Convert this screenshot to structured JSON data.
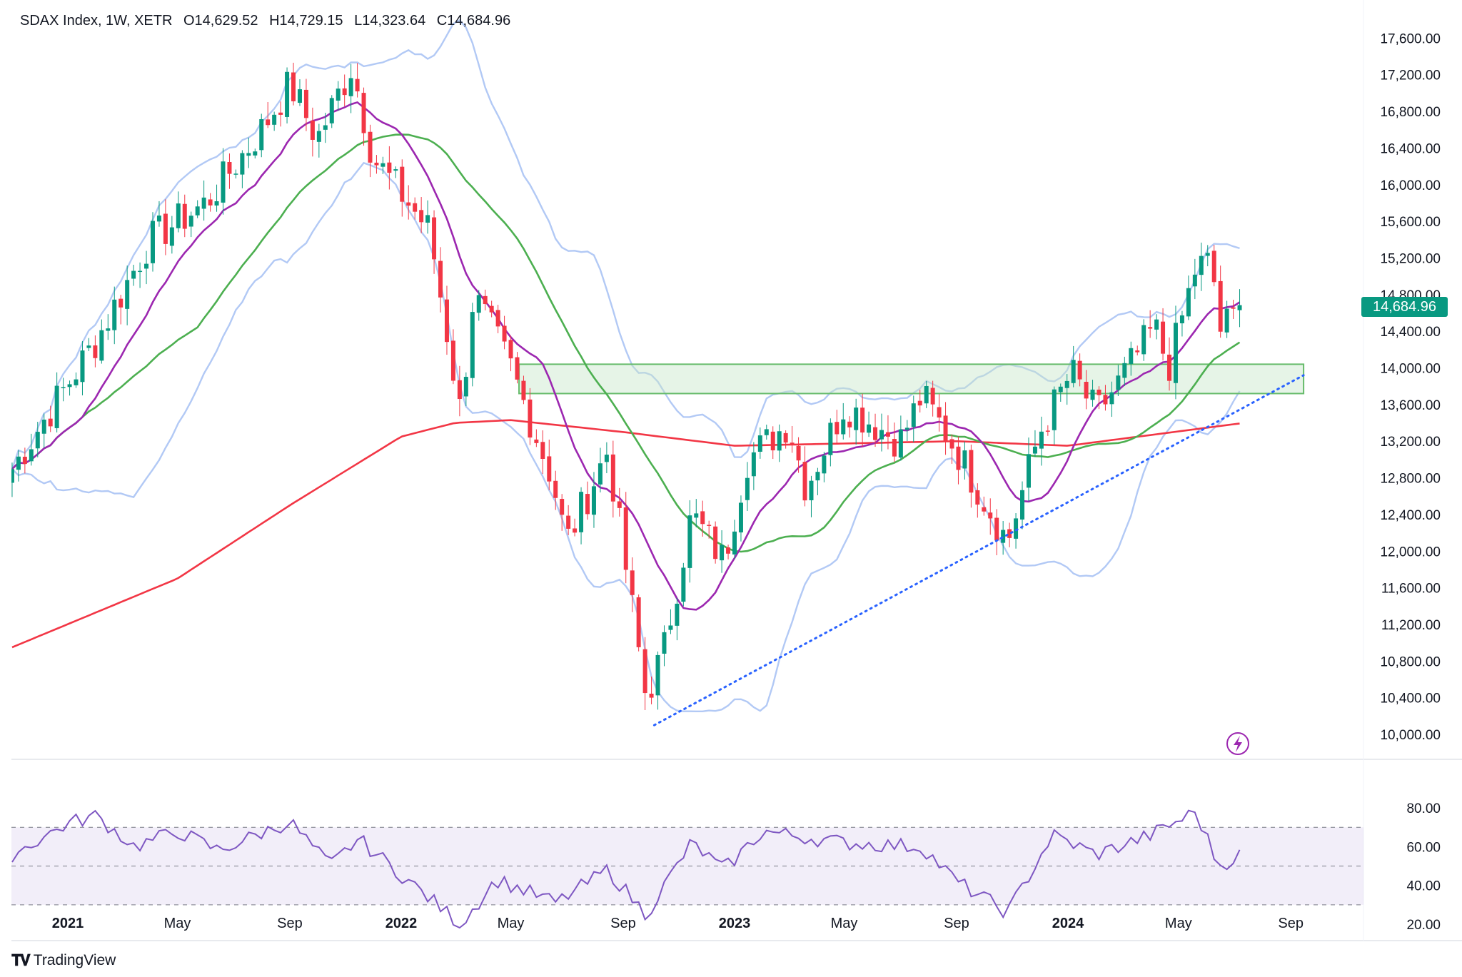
{
  "header": {
    "symbol": "SDAX Index, 1W, XETR",
    "open_label": "O",
    "open": "14,629.52",
    "high_label": "H",
    "high": "14,729.15",
    "low_label": "L",
    "low": "14,323.64",
    "close_label": "C",
    "close": "14,684.96"
  },
  "last_price": "14,684.96",
  "brand": {
    "name": "TradingView"
  },
  "colors": {
    "up": "#089981",
    "down": "#f23645",
    "sma20": "#9c27b0",
    "sma50": "#4caf50",
    "sma200": "#f23645",
    "bollinger": "#b2c9f5",
    "trendline": "#2962ff",
    "zone_fill": "#c8e6c9",
    "zone_border": "#66bb6a",
    "rsi": "#7e57c2"
  },
  "chart_data": [
    {
      "type": "candlestick",
      "title": "SDAX Index, 1W, XETR",
      "ylim": [
        9800,
        17800
      ],
      "yticks": [
        "17,600.00",
        "17,200.00",
        "16,800.00",
        "16,400.00",
        "16,000.00",
        "15,600.00",
        "15,200.00",
        "14,800.00",
        "14,400.00",
        "14,000.00",
        "13,600.00",
        "13,200.00",
        "12,800.00",
        "12,400.00",
        "12,000.00",
        "11,600.00",
        "11,200.00",
        "10,800.00",
        "10,400.00",
        "10,000.00"
      ],
      "xticks": [
        {
          "label": "2021",
          "year": true,
          "date": "2021-01-01"
        },
        {
          "label": "May",
          "date": "2021-05-01"
        },
        {
          "label": "Sep",
          "date": "2021-09-01"
        },
        {
          "label": "2022",
          "year": true,
          "date": "2022-01-01"
        },
        {
          "label": "May",
          "date": "2022-05-01"
        },
        {
          "label": "Sep",
          "date": "2022-09-01"
        },
        {
          "label": "2023",
          "year": true,
          "date": "2023-01-01"
        },
        {
          "label": "May",
          "date": "2023-05-01"
        },
        {
          "label": "Sep",
          "date": "2023-09-01"
        },
        {
          "label": "2024",
          "year": true,
          "date": "2024-01-01"
        },
        {
          "label": "May",
          "date": "2024-05-01"
        },
        {
          "label": "Sep",
          "date": "2024-09-01"
        }
      ],
      "key_points": [
        {
          "date": "2020-11-01",
          "value": 12900
        },
        {
          "date": "2021-02-01",
          "value": 14300
        },
        {
          "date": "2021-04-01",
          "value": 15400
        },
        {
          "date": "2021-06-01",
          "value": 15800
        },
        {
          "date": "2021-08-01",
          "value": 16600
        },
        {
          "date": "2021-09-01",
          "value": 17100
        },
        {
          "date": "2021-10-01",
          "value": 16500
        },
        {
          "date": "2021-11-08",
          "value": 17300
        },
        {
          "date": "2021-12-01",
          "value": 16300
        },
        {
          "date": "2022-02-01",
          "value": 15500
        },
        {
          "date": "2022-03-07",
          "value": 13500
        },
        {
          "date": "2022-03-21",
          "value": 14800
        },
        {
          "date": "2022-05-01",
          "value": 14000
        },
        {
          "date": "2022-06-15",
          "value": 12800
        },
        {
          "date": "2022-07-01",
          "value": 12100
        },
        {
          "date": "2022-08-15",
          "value": 13100
        },
        {
          "date": "2022-09-26",
          "value": 10400
        },
        {
          "date": "2022-10-15",
          "value": 10900
        },
        {
          "date": "2022-11-15",
          "value": 12400
        },
        {
          "date": "2022-12-20",
          "value": 11900
        },
        {
          "date": "2023-01-15",
          "value": 13000
        },
        {
          "date": "2023-03-01",
          "value": 13400
        },
        {
          "date": "2023-03-20",
          "value": 12700
        },
        {
          "date": "2023-05-01",
          "value": 13600
        },
        {
          "date": "2023-07-01",
          "value": 13200
        },
        {
          "date": "2023-07-25",
          "value": 13700
        },
        {
          "date": "2023-09-01",
          "value": 13100
        },
        {
          "date": "2023-10-27",
          "value": 12100
        },
        {
          "date": "2023-12-01",
          "value": 13300
        },
        {
          "date": "2024-01-05",
          "value": 13950
        },
        {
          "date": "2024-02-01",
          "value": 13500
        },
        {
          "date": "2024-03-01",
          "value": 13900
        },
        {
          "date": "2024-04-05",
          "value": 14450
        },
        {
          "date": "2024-04-20",
          "value": 14000
        },
        {
          "date": "2024-05-20",
          "value": 15100
        },
        {
          "date": "2024-06-07",
          "value": 15150
        },
        {
          "date": "2024-06-14",
          "value": 14400
        },
        {
          "date": "2024-07-05",
          "value": 14600
        },
        {
          "date": "2024-07-12",
          "value": 14685
        }
      ],
      "overlays": {
        "sma200": [
          {
            "date": "2020-11-01",
            "value": 10950
          },
          {
            "date": "2021-05-01",
            "value": 11700
          },
          {
            "date": "2021-09-01",
            "value": 12500
          },
          {
            "date": "2022-01-01",
            "value": 13250
          },
          {
            "date": "2022-03-01",
            "value": 13400
          },
          {
            "date": "2022-05-01",
            "value": 13430
          },
          {
            "date": "2022-09-01",
            "value": 13300
          },
          {
            "date": "2023-01-01",
            "value": 13150
          },
          {
            "date": "2023-09-01",
            "value": 13200
          },
          {
            "date": "2024-01-01",
            "value": 13150
          },
          {
            "date": "2024-07-12",
            "value": 13400
          }
        ],
        "support_zone": {
          "start": "2022-05-10",
          "end": "2024-09-15",
          "low": 13720,
          "high": 14040
        },
        "trendline": {
          "start": {
            "date": "2022-10-05",
            "value": 10100
          },
          "end": {
            "date": "2024-09-15",
            "value": 13920
          }
        }
      }
    },
    {
      "type": "line",
      "ylim": [
        15,
        85
      ],
      "yticks": [
        "80.00",
        "60.00",
        "40.00",
        "20.00"
      ],
      "bands": [
        30,
        50,
        70
      ],
      "points": [
        {
          "date": "2020-11-01",
          "value": 56
        },
        {
          "date": "2021-01-01",
          "value": 72
        },
        {
          "date": "2021-02-01",
          "value": 76
        },
        {
          "date": "2021-03-15",
          "value": 60
        },
        {
          "date": "2021-05-01",
          "value": 68
        },
        {
          "date": "2021-06-15",
          "value": 58
        },
        {
          "date": "2021-09-01",
          "value": 73
        },
        {
          "date": "2021-10-15",
          "value": 50
        },
        {
          "date": "2021-11-15",
          "value": 64
        },
        {
          "date": "2022-01-15",
          "value": 40
        },
        {
          "date": "2022-03-07",
          "value": 20
        },
        {
          "date": "2022-04-15",
          "value": 43
        },
        {
          "date": "2022-06-20",
          "value": 31
        },
        {
          "date": "2022-08-15",
          "value": 48
        },
        {
          "date": "2022-09-26",
          "value": 25
        },
        {
          "date": "2022-11-15",
          "value": 62
        },
        {
          "date": "2022-12-20",
          "value": 48
        },
        {
          "date": "2023-02-01",
          "value": 68
        },
        {
          "date": "2023-05-01",
          "value": 62
        },
        {
          "date": "2023-07-25",
          "value": 60
        },
        {
          "date": "2023-09-01",
          "value": 42
        },
        {
          "date": "2023-10-27",
          "value": 26
        },
        {
          "date": "2023-12-15",
          "value": 66
        },
        {
          "date": "2024-02-01",
          "value": 56
        },
        {
          "date": "2024-04-01",
          "value": 66
        },
        {
          "date": "2024-05-20",
          "value": 78
        },
        {
          "date": "2024-06-14",
          "value": 50
        },
        {
          "date": "2024-07-12",
          "value": 57
        }
      ]
    }
  ]
}
